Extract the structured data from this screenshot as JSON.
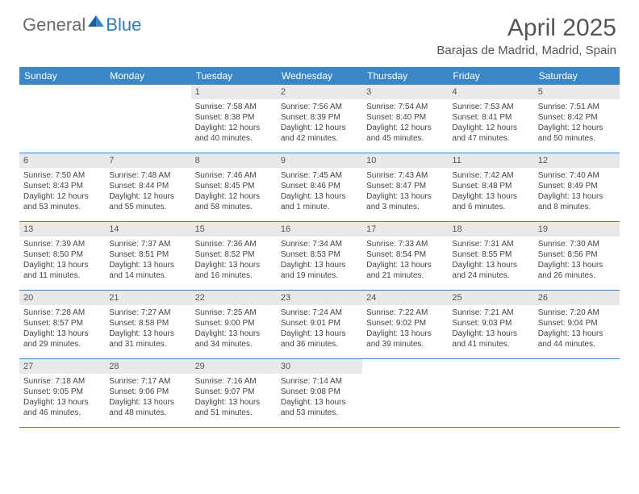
{
  "logo": {
    "general": "General",
    "blue": "Blue"
  },
  "title": "April 2025",
  "location": "Barajas de Madrid, Madrid, Spain",
  "colors": {
    "header_bg": "#3b86c6",
    "header_text": "#ffffff",
    "daynum_bg": "#e9e9e9",
    "border": "#3b86c6",
    "text": "#444444",
    "logo_gray": "#6a6a6a",
    "logo_blue": "#2b7cc0"
  },
  "day_names": [
    "Sunday",
    "Monday",
    "Tuesday",
    "Wednesday",
    "Thursday",
    "Friday",
    "Saturday"
  ],
  "weeks": [
    [
      null,
      null,
      {
        "n": "1",
        "sr": "7:58 AM",
        "ss": "8:38 PM",
        "dl": "12 hours and 40 minutes."
      },
      {
        "n": "2",
        "sr": "7:56 AM",
        "ss": "8:39 PM",
        "dl": "12 hours and 42 minutes."
      },
      {
        "n": "3",
        "sr": "7:54 AM",
        "ss": "8:40 PM",
        "dl": "12 hours and 45 minutes."
      },
      {
        "n": "4",
        "sr": "7:53 AM",
        "ss": "8:41 PM",
        "dl": "12 hours and 47 minutes."
      },
      {
        "n": "5",
        "sr": "7:51 AM",
        "ss": "8:42 PM",
        "dl": "12 hours and 50 minutes."
      }
    ],
    [
      {
        "n": "6",
        "sr": "7:50 AM",
        "ss": "8:43 PM",
        "dl": "12 hours and 53 minutes."
      },
      {
        "n": "7",
        "sr": "7:48 AM",
        "ss": "8:44 PM",
        "dl": "12 hours and 55 minutes."
      },
      {
        "n": "8",
        "sr": "7:46 AM",
        "ss": "8:45 PM",
        "dl": "12 hours and 58 minutes."
      },
      {
        "n": "9",
        "sr": "7:45 AM",
        "ss": "8:46 PM",
        "dl": "13 hours and 1 minute."
      },
      {
        "n": "10",
        "sr": "7:43 AM",
        "ss": "8:47 PM",
        "dl": "13 hours and 3 minutes."
      },
      {
        "n": "11",
        "sr": "7:42 AM",
        "ss": "8:48 PM",
        "dl": "13 hours and 6 minutes."
      },
      {
        "n": "12",
        "sr": "7:40 AM",
        "ss": "8:49 PM",
        "dl": "13 hours and 8 minutes."
      }
    ],
    [
      {
        "n": "13",
        "sr": "7:39 AM",
        "ss": "8:50 PM",
        "dl": "13 hours and 11 minutes."
      },
      {
        "n": "14",
        "sr": "7:37 AM",
        "ss": "8:51 PM",
        "dl": "13 hours and 14 minutes."
      },
      {
        "n": "15",
        "sr": "7:36 AM",
        "ss": "8:52 PM",
        "dl": "13 hours and 16 minutes."
      },
      {
        "n": "16",
        "sr": "7:34 AM",
        "ss": "8:53 PM",
        "dl": "13 hours and 19 minutes."
      },
      {
        "n": "17",
        "sr": "7:33 AM",
        "ss": "8:54 PM",
        "dl": "13 hours and 21 minutes."
      },
      {
        "n": "18",
        "sr": "7:31 AM",
        "ss": "8:55 PM",
        "dl": "13 hours and 24 minutes."
      },
      {
        "n": "19",
        "sr": "7:30 AM",
        "ss": "8:56 PM",
        "dl": "13 hours and 26 minutes."
      }
    ],
    [
      {
        "n": "20",
        "sr": "7:28 AM",
        "ss": "8:57 PM",
        "dl": "13 hours and 29 minutes."
      },
      {
        "n": "21",
        "sr": "7:27 AM",
        "ss": "8:58 PM",
        "dl": "13 hours and 31 minutes."
      },
      {
        "n": "22",
        "sr": "7:25 AM",
        "ss": "9:00 PM",
        "dl": "13 hours and 34 minutes."
      },
      {
        "n": "23",
        "sr": "7:24 AM",
        "ss": "9:01 PM",
        "dl": "13 hours and 36 minutes."
      },
      {
        "n": "24",
        "sr": "7:22 AM",
        "ss": "9:02 PM",
        "dl": "13 hours and 39 minutes."
      },
      {
        "n": "25",
        "sr": "7:21 AM",
        "ss": "9:03 PM",
        "dl": "13 hours and 41 minutes."
      },
      {
        "n": "26",
        "sr": "7:20 AM",
        "ss": "9:04 PM",
        "dl": "13 hours and 44 minutes."
      }
    ],
    [
      {
        "n": "27",
        "sr": "7:18 AM",
        "ss": "9:05 PM",
        "dl": "13 hours and 46 minutes."
      },
      {
        "n": "28",
        "sr": "7:17 AM",
        "ss": "9:06 PM",
        "dl": "13 hours and 48 minutes."
      },
      {
        "n": "29",
        "sr": "7:16 AM",
        "ss": "9:07 PM",
        "dl": "13 hours and 51 minutes."
      },
      {
        "n": "30",
        "sr": "7:14 AM",
        "ss": "9:08 PM",
        "dl": "13 hours and 53 minutes."
      },
      null,
      null,
      null
    ]
  ],
  "labels": {
    "sunrise": "Sunrise:",
    "sunset": "Sunset:",
    "daylight": "Daylight:"
  }
}
